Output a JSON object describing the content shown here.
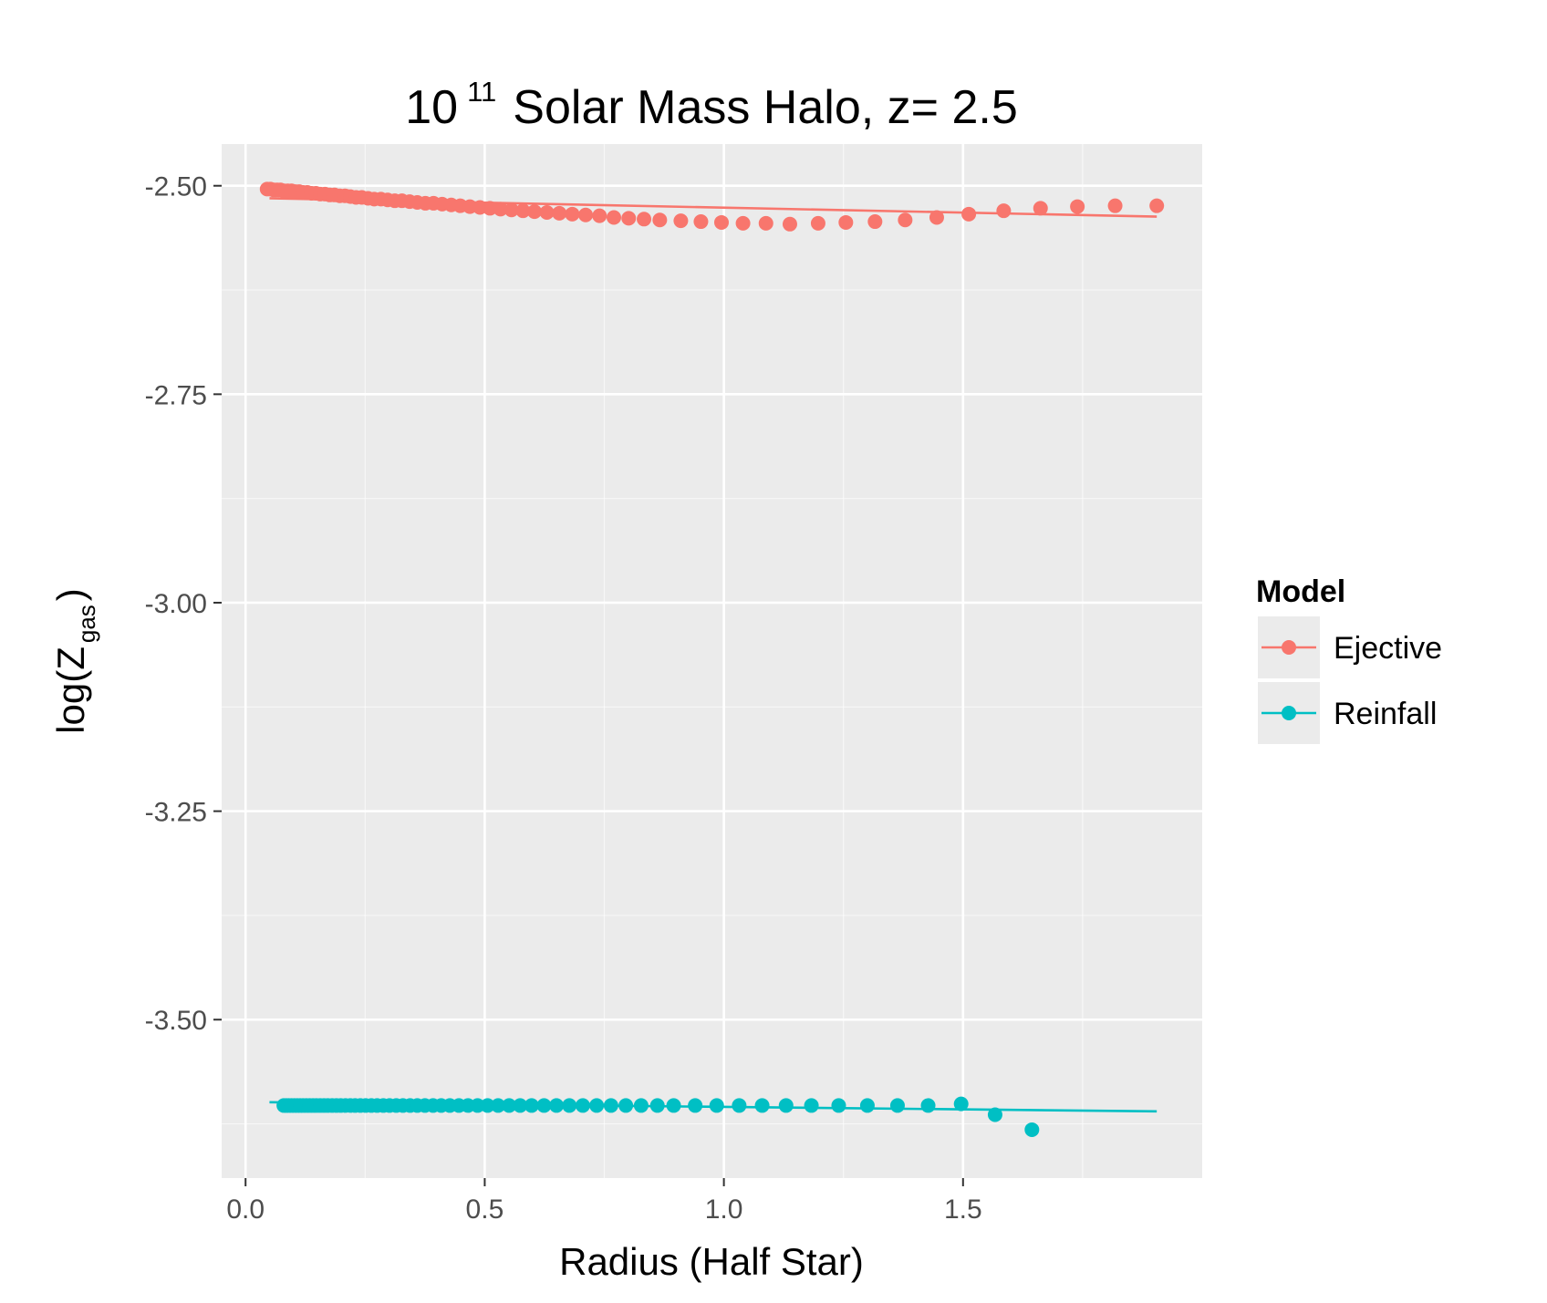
{
  "chart_data": {
    "type": "scatter",
    "title": {
      "base": "10",
      "exponent": "11",
      "rest": "Solar Mass Halo, z= 2.5"
    },
    "xlabel": "Radius (Half Star)",
    "ylabel": {
      "prefix": "log(Z",
      "subscript": "gas",
      "suffix": ")"
    },
    "xlim": [
      -0.05,
      2.0
    ],
    "ylim": [
      -3.69,
      -2.45
    ],
    "x_ticks": [
      0.0,
      0.5,
      1.0,
      1.5
    ],
    "x_tick_labels": [
      "0.0",
      "0.5",
      "1.0",
      "1.5"
    ],
    "y_ticks": [
      -2.5,
      -2.75,
      -3.0,
      -3.25,
      -3.5
    ],
    "y_tick_labels": [
      "-2.50",
      "-2.75",
      "-3.00",
      "-3.25",
      "-3.50"
    ],
    "grid": true,
    "panel_color": "#ebebeb",
    "grid_color": "#ffffff",
    "legend": {
      "title": "Model",
      "position": "right"
    },
    "series": [
      {
        "name": "Ejective",
        "color": "#f8766d",
        "points": [
          [
            0.045,
            -2.504
          ],
          [
            0.052,
            -2.504
          ],
          [
            0.059,
            -2.505
          ],
          [
            0.066,
            -2.505
          ],
          [
            0.073,
            -2.505
          ],
          [
            0.08,
            -2.506
          ],
          [
            0.088,
            -2.506
          ],
          [
            0.096,
            -2.506
          ],
          [
            0.104,
            -2.507
          ],
          [
            0.112,
            -2.507
          ],
          [
            0.12,
            -2.508
          ],
          [
            0.129,
            -2.508
          ],
          [
            0.138,
            -2.509
          ],
          [
            0.147,
            -2.509
          ],
          [
            0.156,
            -2.51
          ],
          [
            0.166,
            -2.51
          ],
          [
            0.176,
            -2.511
          ],
          [
            0.186,
            -2.511
          ],
          [
            0.197,
            -2.512
          ],
          [
            0.208,
            -2.512
          ],
          [
            0.219,
            -2.513
          ],
          [
            0.231,
            -2.514
          ],
          [
            0.243,
            -2.514
          ],
          [
            0.256,
            -2.515
          ],
          [
            0.269,
            -2.516
          ],
          [
            0.283,
            -2.516
          ],
          [
            0.297,
            -2.517
          ],
          [
            0.312,
            -2.518
          ],
          [
            0.327,
            -2.518
          ],
          [
            0.343,
            -2.519
          ],
          [
            0.359,
            -2.52
          ],
          [
            0.376,
            -2.521
          ],
          [
            0.393,
            -2.521
          ],
          [
            0.411,
            -2.522
          ],
          [
            0.43,
            -2.523
          ],
          [
            0.449,
            -2.524
          ],
          [
            0.469,
            -2.525
          ],
          [
            0.49,
            -2.526
          ],
          [
            0.511,
            -2.527
          ],
          [
            0.533,
            -2.528
          ],
          [
            0.556,
            -2.529
          ],
          [
            0.58,
            -2.53
          ],
          [
            0.604,
            -2.531
          ],
          [
            0.63,
            -2.532
          ],
          [
            0.656,
            -2.533
          ],
          [
            0.683,
            -2.534
          ],
          [
            0.711,
            -2.535
          ],
          [
            0.74,
            -2.536
          ],
          [
            0.77,
            -2.538
          ],
          [
            0.801,
            -2.539
          ],
          [
            0.833,
            -2.54
          ],
          [
            0.866,
            -2.541
          ],
          [
            0.91,
            -2.542
          ],
          [
            0.952,
            -2.543
          ],
          [
            0.995,
            -2.544
          ],
          [
            1.04,
            -2.545
          ],
          [
            1.088,
            -2.545
          ],
          [
            1.138,
            -2.546
          ],
          [
            1.197,
            -2.545
          ],
          [
            1.255,
            -2.544
          ],
          [
            1.316,
            -2.543
          ],
          [
            1.379,
            -2.541
          ],
          [
            1.445,
            -2.538
          ],
          [
            1.512,
            -2.534
          ],
          [
            1.585,
            -2.53
          ],
          [
            1.662,
            -2.527
          ],
          [
            1.739,
            -2.525
          ],
          [
            1.818,
            -2.524
          ],
          [
            1.905,
            -2.524
          ]
        ],
        "fit": [
          [
            0.05,
            -2.515
          ],
          [
            1.905,
            -2.537
          ]
        ]
      },
      {
        "name": "Reinfall",
        "color": "#00bfc4",
        "points": [
          [
            0.08,
            -3.603
          ],
          [
            0.085,
            -3.603
          ],
          [
            0.09,
            -3.603
          ],
          [
            0.096,
            -3.603
          ],
          [
            0.102,
            -3.603
          ],
          [
            0.108,
            -3.603
          ],
          [
            0.114,
            -3.603
          ],
          [
            0.12,
            -3.603
          ],
          [
            0.127,
            -3.603
          ],
          [
            0.134,
            -3.603
          ],
          [
            0.141,
            -3.603
          ],
          [
            0.148,
            -3.603
          ],
          [
            0.156,
            -3.603
          ],
          [
            0.164,
            -3.603
          ],
          [
            0.172,
            -3.603
          ],
          [
            0.181,
            -3.603
          ],
          [
            0.19,
            -3.603
          ],
          [
            0.199,
            -3.603
          ],
          [
            0.209,
            -3.603
          ],
          [
            0.219,
            -3.603
          ],
          [
            0.229,
            -3.603
          ],
          [
            0.24,
            -3.603
          ],
          [
            0.251,
            -3.603
          ],
          [
            0.263,
            -3.603
          ],
          [
            0.275,
            -3.603
          ],
          [
            0.288,
            -3.603
          ],
          [
            0.301,
            -3.603
          ],
          [
            0.315,
            -3.603
          ],
          [
            0.329,
            -3.603
          ],
          [
            0.344,
            -3.603
          ],
          [
            0.359,
            -3.603
          ],
          [
            0.375,
            -3.603
          ],
          [
            0.392,
            -3.603
          ],
          [
            0.409,
            -3.603
          ],
          [
            0.427,
            -3.603
          ],
          [
            0.446,
            -3.603
          ],
          [
            0.465,
            -3.603
          ],
          [
            0.485,
            -3.603
          ],
          [
            0.506,
            -3.603
          ],
          [
            0.528,
            -3.603
          ],
          [
            0.551,
            -3.603
          ],
          [
            0.574,
            -3.603
          ],
          [
            0.598,
            -3.603
          ],
          [
            0.624,
            -3.603
          ],
          [
            0.65,
            -3.603
          ],
          [
            0.677,
            -3.603
          ],
          [
            0.705,
            -3.603
          ],
          [
            0.734,
            -3.603
          ],
          [
            0.764,
            -3.603
          ],
          [
            0.795,
            -3.603
          ],
          [
            0.827,
            -3.603
          ],
          [
            0.861,
            -3.603
          ],
          [
            0.895,
            -3.603
          ],
          [
            0.94,
            -3.603
          ],
          [
            0.985,
            -3.603
          ],
          [
            1.032,
            -3.603
          ],
          [
            1.08,
            -3.603
          ],
          [
            1.13,
            -3.603
          ],
          [
            1.183,
            -3.603
          ],
          [
            1.24,
            -3.603
          ],
          [
            1.3,
            -3.603
          ],
          [
            1.363,
            -3.603
          ],
          [
            1.427,
            -3.603
          ],
          [
            1.496,
            -3.601
          ],
          [
            1.567,
            -3.614
          ],
          [
            1.644,
            -3.632
          ]
        ],
        "fit": [
          [
            0.05,
            -3.599
          ],
          [
            1.905,
            -3.61
          ]
        ]
      }
    ]
  }
}
